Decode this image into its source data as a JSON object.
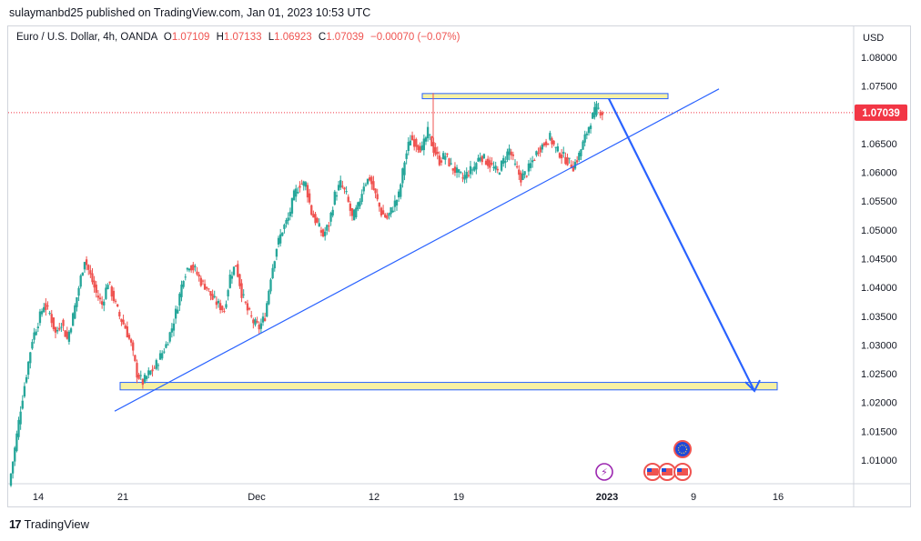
{
  "header": {
    "publisher_line": "sulaymanbd25 published on TradingView.com, Jan 01, 2023 10:53 UTC"
  },
  "legend": {
    "symbol": "Euro / U.S. Dollar, 4h, OANDA",
    "open_label": "O",
    "open": "1.07109",
    "high_label": "H",
    "high": "1.07133",
    "low_label": "L",
    "low": "1.06923",
    "close_label": "C",
    "close": "1.07039",
    "change": "−0.00070 (−0.07%)"
  },
  "footer": {
    "brand": "TradingView",
    "logo_text": "17"
  },
  "colors": {
    "up": "#26a69a",
    "down": "#ef5350",
    "trendline": "#2962ff",
    "zone_fill": "#f7f1a3",
    "price_tag": "#f23645"
  },
  "chart_data": {
    "type": "candlestick",
    "symbol": "EURUSD",
    "timeframe": "4h",
    "currency_label": "USD",
    "y_ticks": [
      "1.08000",
      "1.07500",
      "1.07000",
      "1.06500",
      "1.06000",
      "1.05500",
      "1.05000",
      "1.04500",
      "1.04000",
      "1.03500",
      "1.03000",
      "1.02500",
      "1.02000",
      "1.01500",
      "1.01000"
    ],
    "ylim": [
      1.005,
      1.085
    ],
    "x_ticks": [
      "14",
      "21",
      "Dec",
      "12",
      "19",
      "2023",
      "9",
      "16"
    ],
    "last_price": "1.07039",
    "resistance_zone": [
      1.0728,
      1.0737
    ],
    "support_zone": [
      1.0222,
      1.0235
    ],
    "trendline": {
      "from": [
        "Nov 21",
        1.0185
      ],
      "to": [
        "Jan 05",
        1.0745
      ]
    },
    "projection": {
      "from": [
        "Jan 01",
        1.0728
      ],
      "to": [
        "Jan 13",
        1.022
      ]
    },
    "price_path": [
      1.0055,
      1.012,
      1.019,
      1.025,
      1.031,
      1.034,
      1.037,
      1.0355,
      1.032,
      1.034,
      1.031,
      1.035,
      1.04,
      1.045,
      1.042,
      1.039,
      1.037,
      1.041,
      1.038,
      1.035,
      1.033,
      1.03,
      1.025,
      1.0235,
      1.025,
      1.026,
      1.028,
      1.03,
      1.033,
      1.037,
      1.042,
      1.044,
      1.043,
      1.041,
      1.04,
      1.038,
      1.037,
      1.036,
      1.042,
      1.044,
      1.039,
      1.036,
      1.034,
      1.033,
      1.035,
      1.042,
      1.047,
      1.05,
      1.052,
      1.056,
      1.058,
      1.058,
      1.053,
      1.051,
      1.049,
      1.051,
      1.056,
      1.058,
      1.056,
      1.052,
      1.054,
      1.058,
      1.059,
      1.056,
      1.053,
      1.052,
      1.054,
      1.056,
      1.062,
      1.066,
      1.065,
      1.064,
      1.067,
      1.064,
      1.062,
      1.063,
      1.061,
      1.06,
      1.059,
      1.06,
      1.061,
      1.063,
      1.062,
      1.061,
      1.06,
      1.062,
      1.064,
      1.061,
      1.059,
      1.06,
      1.062,
      1.064,
      1.065,
      1.066,
      1.064,
      1.063,
      1.062,
      1.061,
      1.063,
      1.066,
      1.069,
      1.0712,
      1.0704
    ],
    "events": [
      {
        "type": "flash",
        "date": "Jan 01"
      },
      {
        "type": "flag-us",
        "date": "Jan 06"
      },
      {
        "type": "flag-us",
        "date": "Jan 07"
      },
      {
        "type": "flag-us",
        "date": "Jan 08"
      },
      {
        "type": "flag-eu",
        "date": "Jan 08"
      }
    ]
  }
}
